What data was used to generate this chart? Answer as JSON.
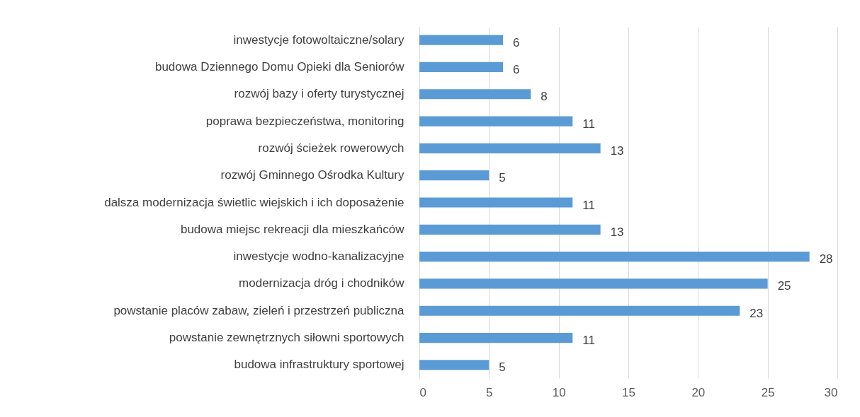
{
  "chart_data": {
    "type": "bar",
    "orientation": "horizontal",
    "categories": [
      "inwestycje fotowoltaiczne/solary",
      "budowa Dziennego Domu Opieki dla Seniorów",
      "rozwój bazy i oferty turystycznej",
      "poprawa bezpieczeństwa, monitoring",
      "rozwój ścieżek rowerowych",
      "rozwój Gminnego Ośrodka Kultury",
      "dalsza modernizacja świetlic wiejskich i ich doposażenie",
      "budowa miejsc rekreacji dla mieszkańców",
      "inwestycje wodno-kanalizacyjne",
      "modernizacja dróg i chodników",
      "powstanie placów zabaw, zieleń i przestrzeń publiczna",
      "powstanie zewnętrznych siłowni sportowych",
      "budowa infrastruktury sportowej"
    ],
    "values": [
      6,
      6,
      8,
      11,
      13,
      5,
      11,
      13,
      28,
      25,
      23,
      11,
      5
    ],
    "color": "#5b9bd5",
    "xlim": [
      0,
      30
    ],
    "xticks": [
      0,
      5,
      10,
      15,
      20,
      25,
      30
    ],
    "grid": "x",
    "data_labels": true
  }
}
